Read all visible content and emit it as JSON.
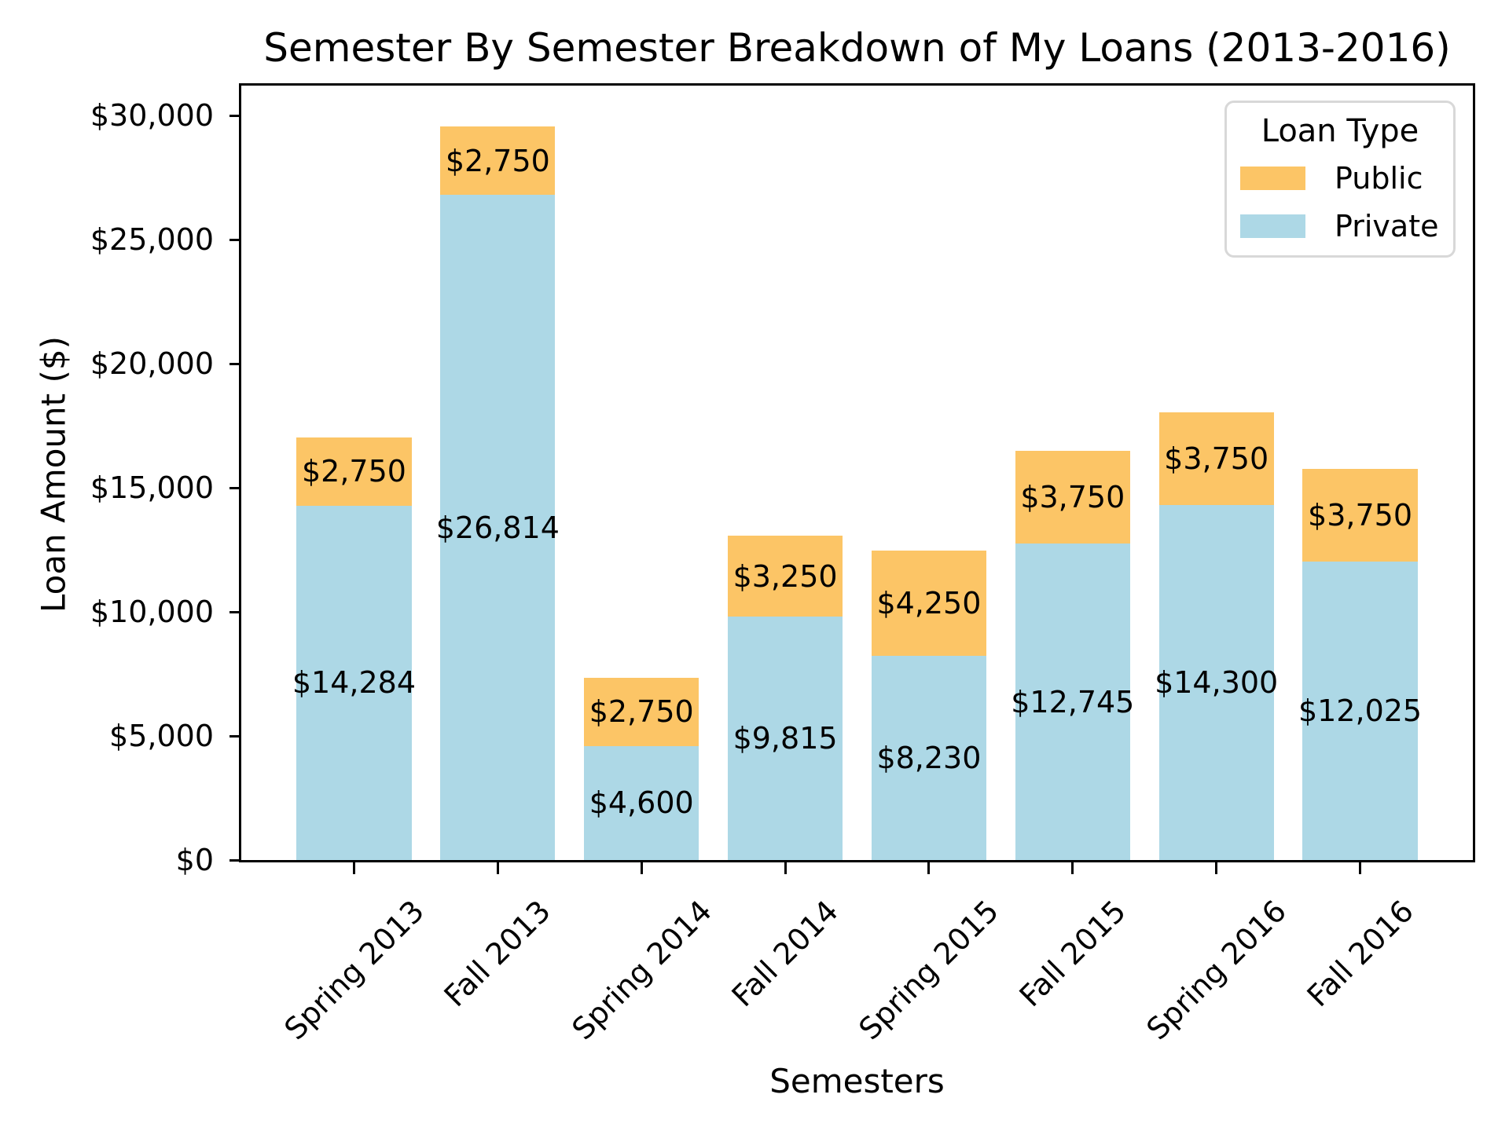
{
  "chart_data": {
    "type": "bar",
    "stacked": true,
    "title": "Semester By Semester Breakdown of My Loans (2013-2016)",
    "xlabel": "Semesters",
    "ylabel": "Loan Amount ($)",
    "categories": [
      "Spring 2013",
      "Fall 2013",
      "Spring 2014",
      "Fall 2014",
      "Spring 2015",
      "Fall 2015",
      "Spring 2016",
      "Fall 2016"
    ],
    "series": [
      {
        "name": "Private",
        "color": "#ADD8E6",
        "stack_position": "bottom",
        "values": [
          14284,
          26814,
          4600,
          9815,
          8230,
          12745,
          14300,
          12025
        ],
        "labels": [
          "$14,284",
          "$26,814",
          "$4,600",
          "$9,815",
          "$8,230",
          "$12,745",
          "$14,300",
          "$12,025"
        ]
      },
      {
        "name": "Public",
        "color": "#FCC566",
        "stack_position": "top",
        "values": [
          2750,
          2750,
          2750,
          3250,
          4250,
          3750,
          3750,
          3750
        ],
        "labels": [
          "$2,750",
          "$2,750",
          "$2,750",
          "$3,250",
          "$4,250",
          "$3,750",
          "$3,750",
          "$3,750"
        ]
      }
    ],
    "totals": [
      17034,
      29564,
      7350,
      13065,
      12480,
      16495,
      18050,
      15775
    ],
    "yticks": {
      "values": [
        0,
        5000,
        10000,
        15000,
        20000,
        25000,
        30000
      ],
      "labels": [
        "$0",
        "$5,000",
        "$10,000",
        "$15,000",
        "$20,000",
        "$25,000",
        "$30,000"
      ]
    },
    "ylim": [
      0,
      31250
    ],
    "grid": false,
    "x_tick_rotation_deg": 45,
    "legend": {
      "title": "Loan Type",
      "position": "upper right",
      "entries": [
        {
          "label": "Public",
          "color": "#FCC566"
        },
        {
          "label": "Private",
          "color": "#ADD8E6"
        }
      ]
    },
    "colors": {
      "axis": "#000000",
      "text": "#000000",
      "background": "#ffffff",
      "legend_border": "#d8d8d8"
    }
  }
}
